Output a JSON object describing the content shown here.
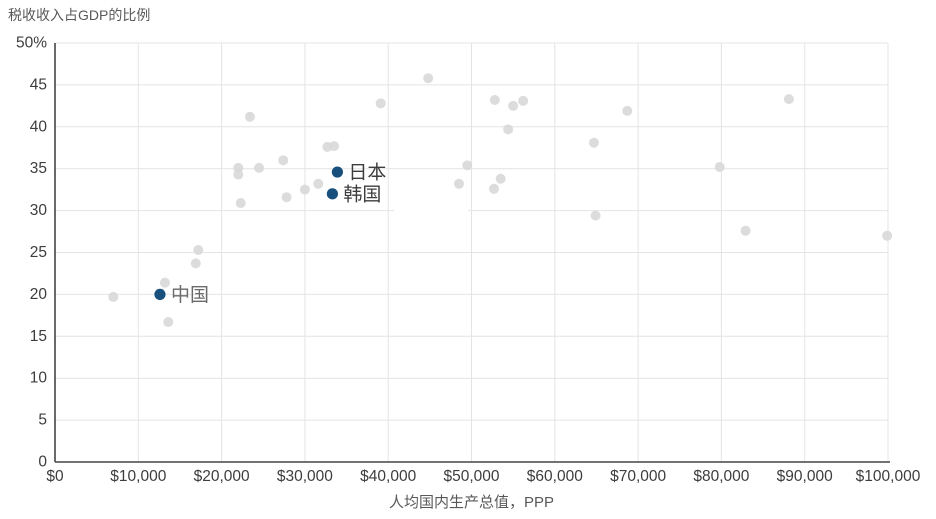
{
  "chart_data": {
    "type": "scatter",
    "title": "税收收入占GDP的比例",
    "xlabel": "人均国内生产总值，PPP",
    "ylabel": "税收收入占GDP的比例",
    "xlim": [
      0,
      100000
    ],
    "ylim": [
      0,
      50
    ],
    "grid": true,
    "legend": "none",
    "x_ticks": {
      "values": [
        0,
        10000,
        20000,
        30000,
        40000,
        50000,
        60000,
        70000,
        80000,
        90000,
        100000
      ],
      "labels": [
        "$0",
        "$10,000",
        "$20,000",
        "$30,000",
        "$40,000",
        "$50,000",
        "$60,000",
        "$70,000",
        "$80,000",
        "$90,000",
        "$100,000"
      ]
    },
    "y_ticks": {
      "values": [
        0,
        5,
        10,
        15,
        20,
        25,
        30,
        35,
        40,
        45,
        50
      ],
      "labels": [
        "0",
        "5",
        "10",
        "15",
        "20",
        "25",
        "30",
        "35",
        "40",
        "45",
        "50%"
      ]
    },
    "colors": {
      "grid": "#e4e4e4",
      "axis": "#454545",
      "gray_point": "#d8d8d8",
      "highlight_point": "#17507d",
      "tick_text": "#3d3d3d",
      "axis_title_text": "#595959"
    },
    "series": [
      {
        "name": "other-economies",
        "color": "#d8d8d8",
        "opacity": 0.9,
        "radius": 5,
        "points": [
          [
            7000,
            19.7
          ],
          [
            13200,
            21.4
          ],
          [
            13600,
            16.7
          ],
          [
            16900,
            23.7
          ],
          [
            17200,
            25.3
          ],
          [
            22000,
            35.1
          ],
          [
            22000,
            34.3
          ],
          [
            22300,
            30.9
          ],
          [
            23400,
            41.2
          ],
          [
            24500,
            35.1
          ],
          [
            27400,
            36.0
          ],
          [
            27800,
            31.6
          ],
          [
            30000,
            32.5
          ],
          [
            31600,
            33.2
          ],
          [
            32700,
            37.6
          ],
          [
            33500,
            37.7
          ],
          [
            39100,
            42.8
          ],
          [
            44800,
            45.8
          ],
          [
            48500,
            33.2
          ],
          [
            49500,
            35.4
          ],
          [
            52700,
            32.6
          ],
          [
            52800,
            43.2
          ],
          [
            53500,
            33.8
          ],
          [
            54400,
            39.7
          ],
          [
            55000,
            42.5
          ],
          [
            56200,
            43.1
          ],
          [
            64700,
            38.1
          ],
          [
            64900,
            29.4
          ],
          [
            68700,
            41.9
          ],
          [
            79800,
            35.2
          ],
          [
            82900,
            27.6
          ],
          [
            88100,
            43.3
          ],
          [
            99900,
            27.0
          ]
        ]
      },
      {
        "name": "highlighted-economies",
        "color": "#17507d",
        "opacity": 1,
        "radius": 5.6,
        "points": [
          {
            "label": "中国",
            "x": 12600,
            "y": 20.0,
            "label_color": "#6a6a6a"
          },
          {
            "label": "韩国",
            "x": 33300,
            "y": 32.0,
            "label_color": "#3d3d3d"
          },
          {
            "label": "日本",
            "x": 33900,
            "y": 34.6,
            "label_color": "#3d3d3d"
          }
        ]
      }
    ]
  }
}
